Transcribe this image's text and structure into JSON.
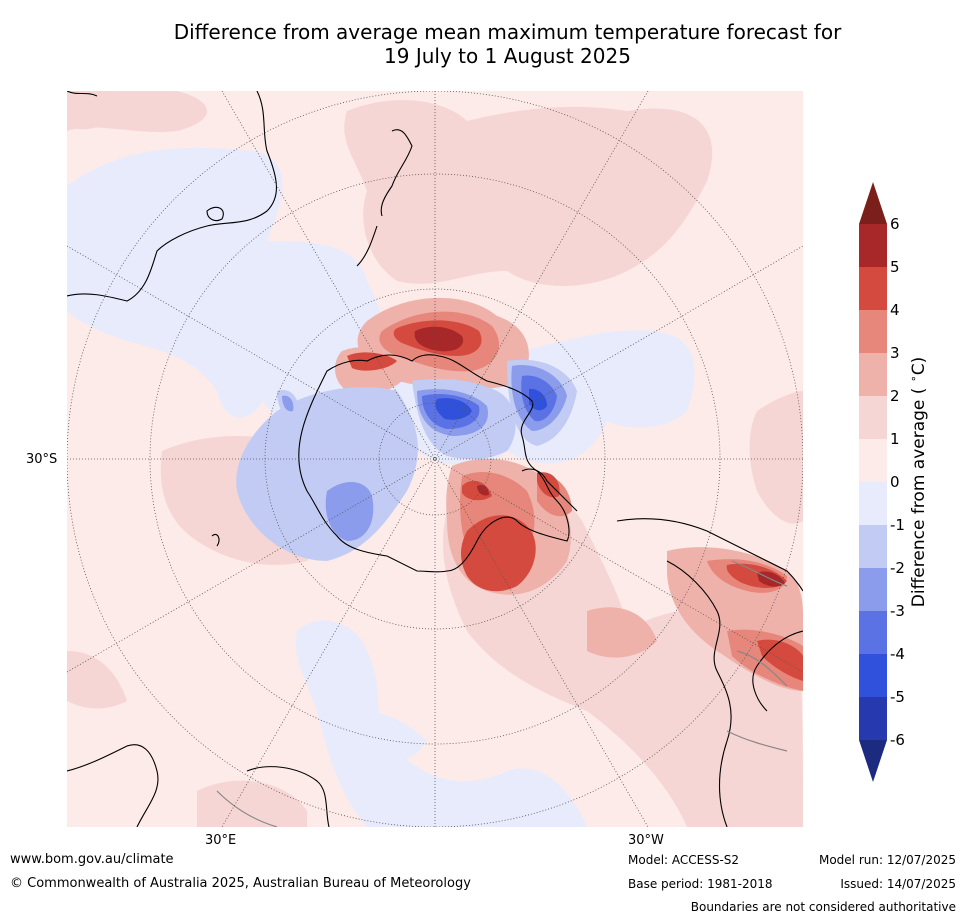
{
  "title_line1": "Difference from average mean maximum temperature forecast for",
  "title_line2": "19 July to 1 August 2025",
  "axis_labels": {
    "lat": "30°S",
    "lon_e": "30°E",
    "lon_w": "30°W"
  },
  "colorbar": {
    "title": "Difference from average ( °C)",
    "ticks": [
      "6",
      "5",
      "4",
      "3",
      "2",
      "1",
      "0",
      "-1",
      "-2",
      "-3",
      "-4",
      "-5",
      "-6"
    ],
    "colors": [
      "#7a1f1a",
      "#a8282a",
      "#d54a3f",
      "#e7877b",
      "#efb2ab",
      "#f6d6d4",
      "#fcebe9",
      "#e8ebfb",
      "#c2cbf3",
      "#8c9cec",
      "#5a72e4",
      "#3051db",
      "#2639ae",
      "#1c2a80"
    ]
  },
  "footer": {
    "website": "www.bom.gov.au/climate",
    "copyright": "© Commonwealth of Australia 2025, Australian Bureau of Meteorology",
    "model": "Model: ACCESS-S2",
    "base_period": "Base period: 1981-2018",
    "model_run": "Model run: 12/07/2025",
    "issued": "Issued: 14/07/2025",
    "disclaimer": "Boundaries are not considered authoritative"
  }
}
